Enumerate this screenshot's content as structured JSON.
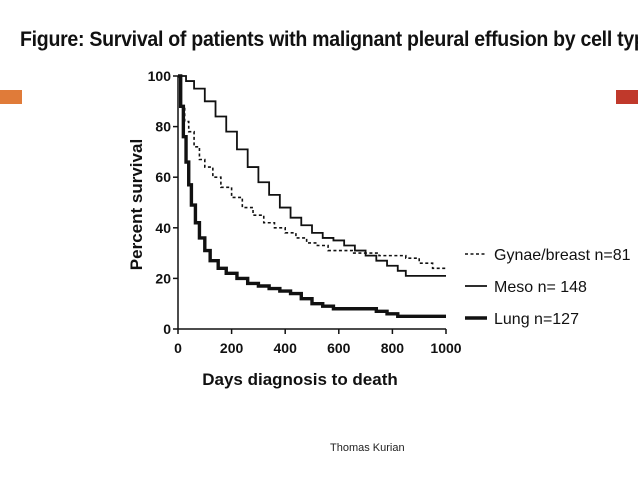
{
  "slide": {
    "title": "Figure: Survival of patients with malignant pleural effusion by cell type",
    "credit": "Thomas Kurian",
    "accent_left_color": "#e07b39",
    "accent_right_color": "#c0392b"
  },
  "chart_data": {
    "type": "line",
    "title": "",
    "xlabel": "Days diagnosis to death",
    "ylabel": "Percent survival",
    "xlim": [
      0,
      1000
    ],
    "ylim": [
      0,
      100
    ],
    "x_ticks": [
      0,
      200,
      400,
      600,
      800,
      1000
    ],
    "y_ticks": [
      0,
      20,
      40,
      60,
      80,
      100
    ],
    "grid": false,
    "legend_position": "right",
    "series": [
      {
        "name": "Gynae/breast n=81",
        "style": "dotted",
        "color": "#111111",
        "points": [
          [
            0,
            100
          ],
          [
            10,
            88
          ],
          [
            25,
            82
          ],
          [
            40,
            78
          ],
          [
            60,
            72
          ],
          [
            80,
            67
          ],
          [
            100,
            64
          ],
          [
            130,
            60
          ],
          [
            160,
            56
          ],
          [
            200,
            52
          ],
          [
            240,
            48
          ],
          [
            280,
            45
          ],
          [
            320,
            42
          ],
          [
            360,
            40
          ],
          [
            400,
            38
          ],
          [
            440,
            36
          ],
          [
            480,
            34
          ],
          [
            520,
            33
          ],
          [
            560,
            31
          ],
          [
            600,
            31
          ],
          [
            650,
            30
          ],
          [
            700,
            30
          ],
          [
            750,
            29
          ],
          [
            800,
            29
          ],
          [
            850,
            28
          ],
          [
            900,
            26
          ],
          [
            950,
            24
          ],
          [
            1000,
            24
          ]
        ]
      },
      {
        "name": "Meso n= 148",
        "style": "solid",
        "color": "#111111",
        "points": [
          [
            0,
            100
          ],
          [
            30,
            98
          ],
          [
            60,
            95
          ],
          [
            100,
            90
          ],
          [
            140,
            84
          ],
          [
            180,
            78
          ],
          [
            220,
            71
          ],
          [
            260,
            64
          ],
          [
            300,
            58
          ],
          [
            340,
            53
          ],
          [
            380,
            48
          ],
          [
            420,
            44
          ],
          [
            460,
            41
          ],
          [
            500,
            38
          ],
          [
            540,
            36
          ],
          [
            580,
            35
          ],
          [
            620,
            33
          ],
          [
            660,
            31
          ],
          [
            700,
            29
          ],
          [
            740,
            27
          ],
          [
            780,
            25
          ],
          [
            820,
            23
          ],
          [
            850,
            21
          ],
          [
            900,
            21
          ],
          [
            950,
            21
          ],
          [
            1000,
            21
          ]
        ]
      },
      {
        "name": "Lung n=127",
        "style": "thick",
        "color": "#111111",
        "points": [
          [
            0,
            100
          ],
          [
            10,
            88
          ],
          [
            20,
            76
          ],
          [
            30,
            66
          ],
          [
            40,
            57
          ],
          [
            50,
            49
          ],
          [
            65,
            42
          ],
          [
            80,
            36
          ],
          [
            100,
            31
          ],
          [
            120,
            27
          ],
          [
            150,
            24
          ],
          [
            180,
            22
          ],
          [
            220,
            20
          ],
          [
            260,
            18
          ],
          [
            300,
            17
          ],
          [
            340,
            16
          ],
          [
            380,
            15
          ],
          [
            420,
            14
          ],
          [
            460,
            12
          ],
          [
            500,
            10
          ],
          [
            540,
            9
          ],
          [
            580,
            8
          ],
          [
            620,
            8
          ],
          [
            660,
            8
          ],
          [
            700,
            8
          ],
          [
            740,
            7
          ],
          [
            780,
            6
          ],
          [
            820,
            5
          ],
          [
            870,
            5
          ],
          [
            920,
            5
          ],
          [
            1000,
            5
          ]
        ]
      }
    ]
  }
}
